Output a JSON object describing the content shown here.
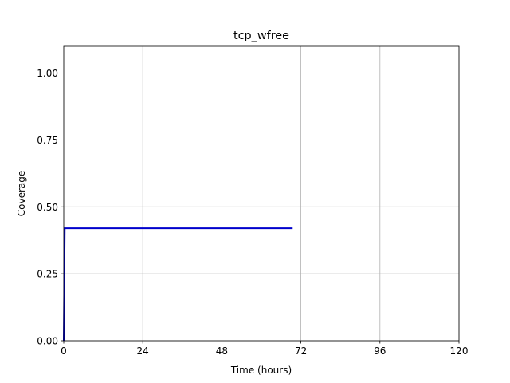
{
  "chart_data": {
    "type": "line",
    "title": "tcp_wfree",
    "xlabel": "Time (hours)",
    "ylabel": "Coverage",
    "xlim": [
      0,
      120
    ],
    "ylim": [
      0,
      1.1
    ],
    "xticks": [
      0,
      24,
      48,
      72,
      96,
      120
    ],
    "xtick_labels": [
      "0",
      "24",
      "48",
      "72",
      "96",
      "120"
    ],
    "yticks": [
      0.0,
      0.25,
      0.5,
      0.75,
      1.0
    ],
    "ytick_labels": [
      "0.00",
      "0.25",
      "0.50",
      "0.75",
      "1.00"
    ],
    "grid": true,
    "series": [
      {
        "color": "#0000cc",
        "x": [
          0,
          0.3,
          69.5
        ],
        "y": [
          0.0,
          0.42,
          0.42
        ]
      }
    ]
  }
}
